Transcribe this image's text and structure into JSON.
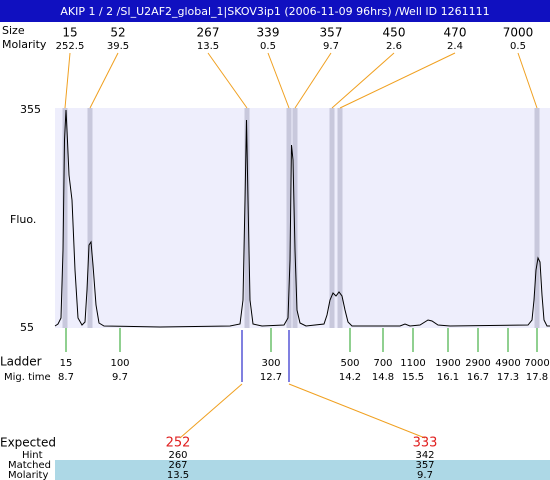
{
  "header": {
    "title": "AKIP 1 / 2 /SI_U2AF2_global_1|SKOV3ip1 (2006-11-09 96hrs) /Well ID 1261111"
  },
  "peaks": {
    "size_label": "Size",
    "molarity_label": "Molarity",
    "sizes": [
      15,
      52,
      267,
      339,
      357,
      450,
      470,
      7000
    ],
    "molarity": [
      252.5,
      39.5,
      13.5,
      0.5,
      9.7,
      2.6,
      2.4,
      0.5
    ]
  },
  "axis": {
    "label": "Fluo.",
    "top": 355,
    "bottom": 55
  },
  "ladder": {
    "label": "Ladder",
    "time_label": "Mig. time",
    "sizes": [
      15,
      100,
      300,
      500,
      700,
      1100,
      1900,
      2900,
      4900,
      7000
    ],
    "times": [
      8.7,
      9.7,
      12.7,
      14.2,
      14.8,
      15.5,
      16.1,
      16.7,
      17.3,
      17.8
    ]
  },
  "expected": {
    "label": "Expected",
    "hint_label": "Hint",
    "matched_label": "Matched",
    "molarity_label": "Molarity",
    "values": [
      252,
      333
    ],
    "hint": [
      260,
      342
    ],
    "matched": [
      267,
      357
    ],
    "molarity": [
      13.5,
      9.7
    ]
  }
}
